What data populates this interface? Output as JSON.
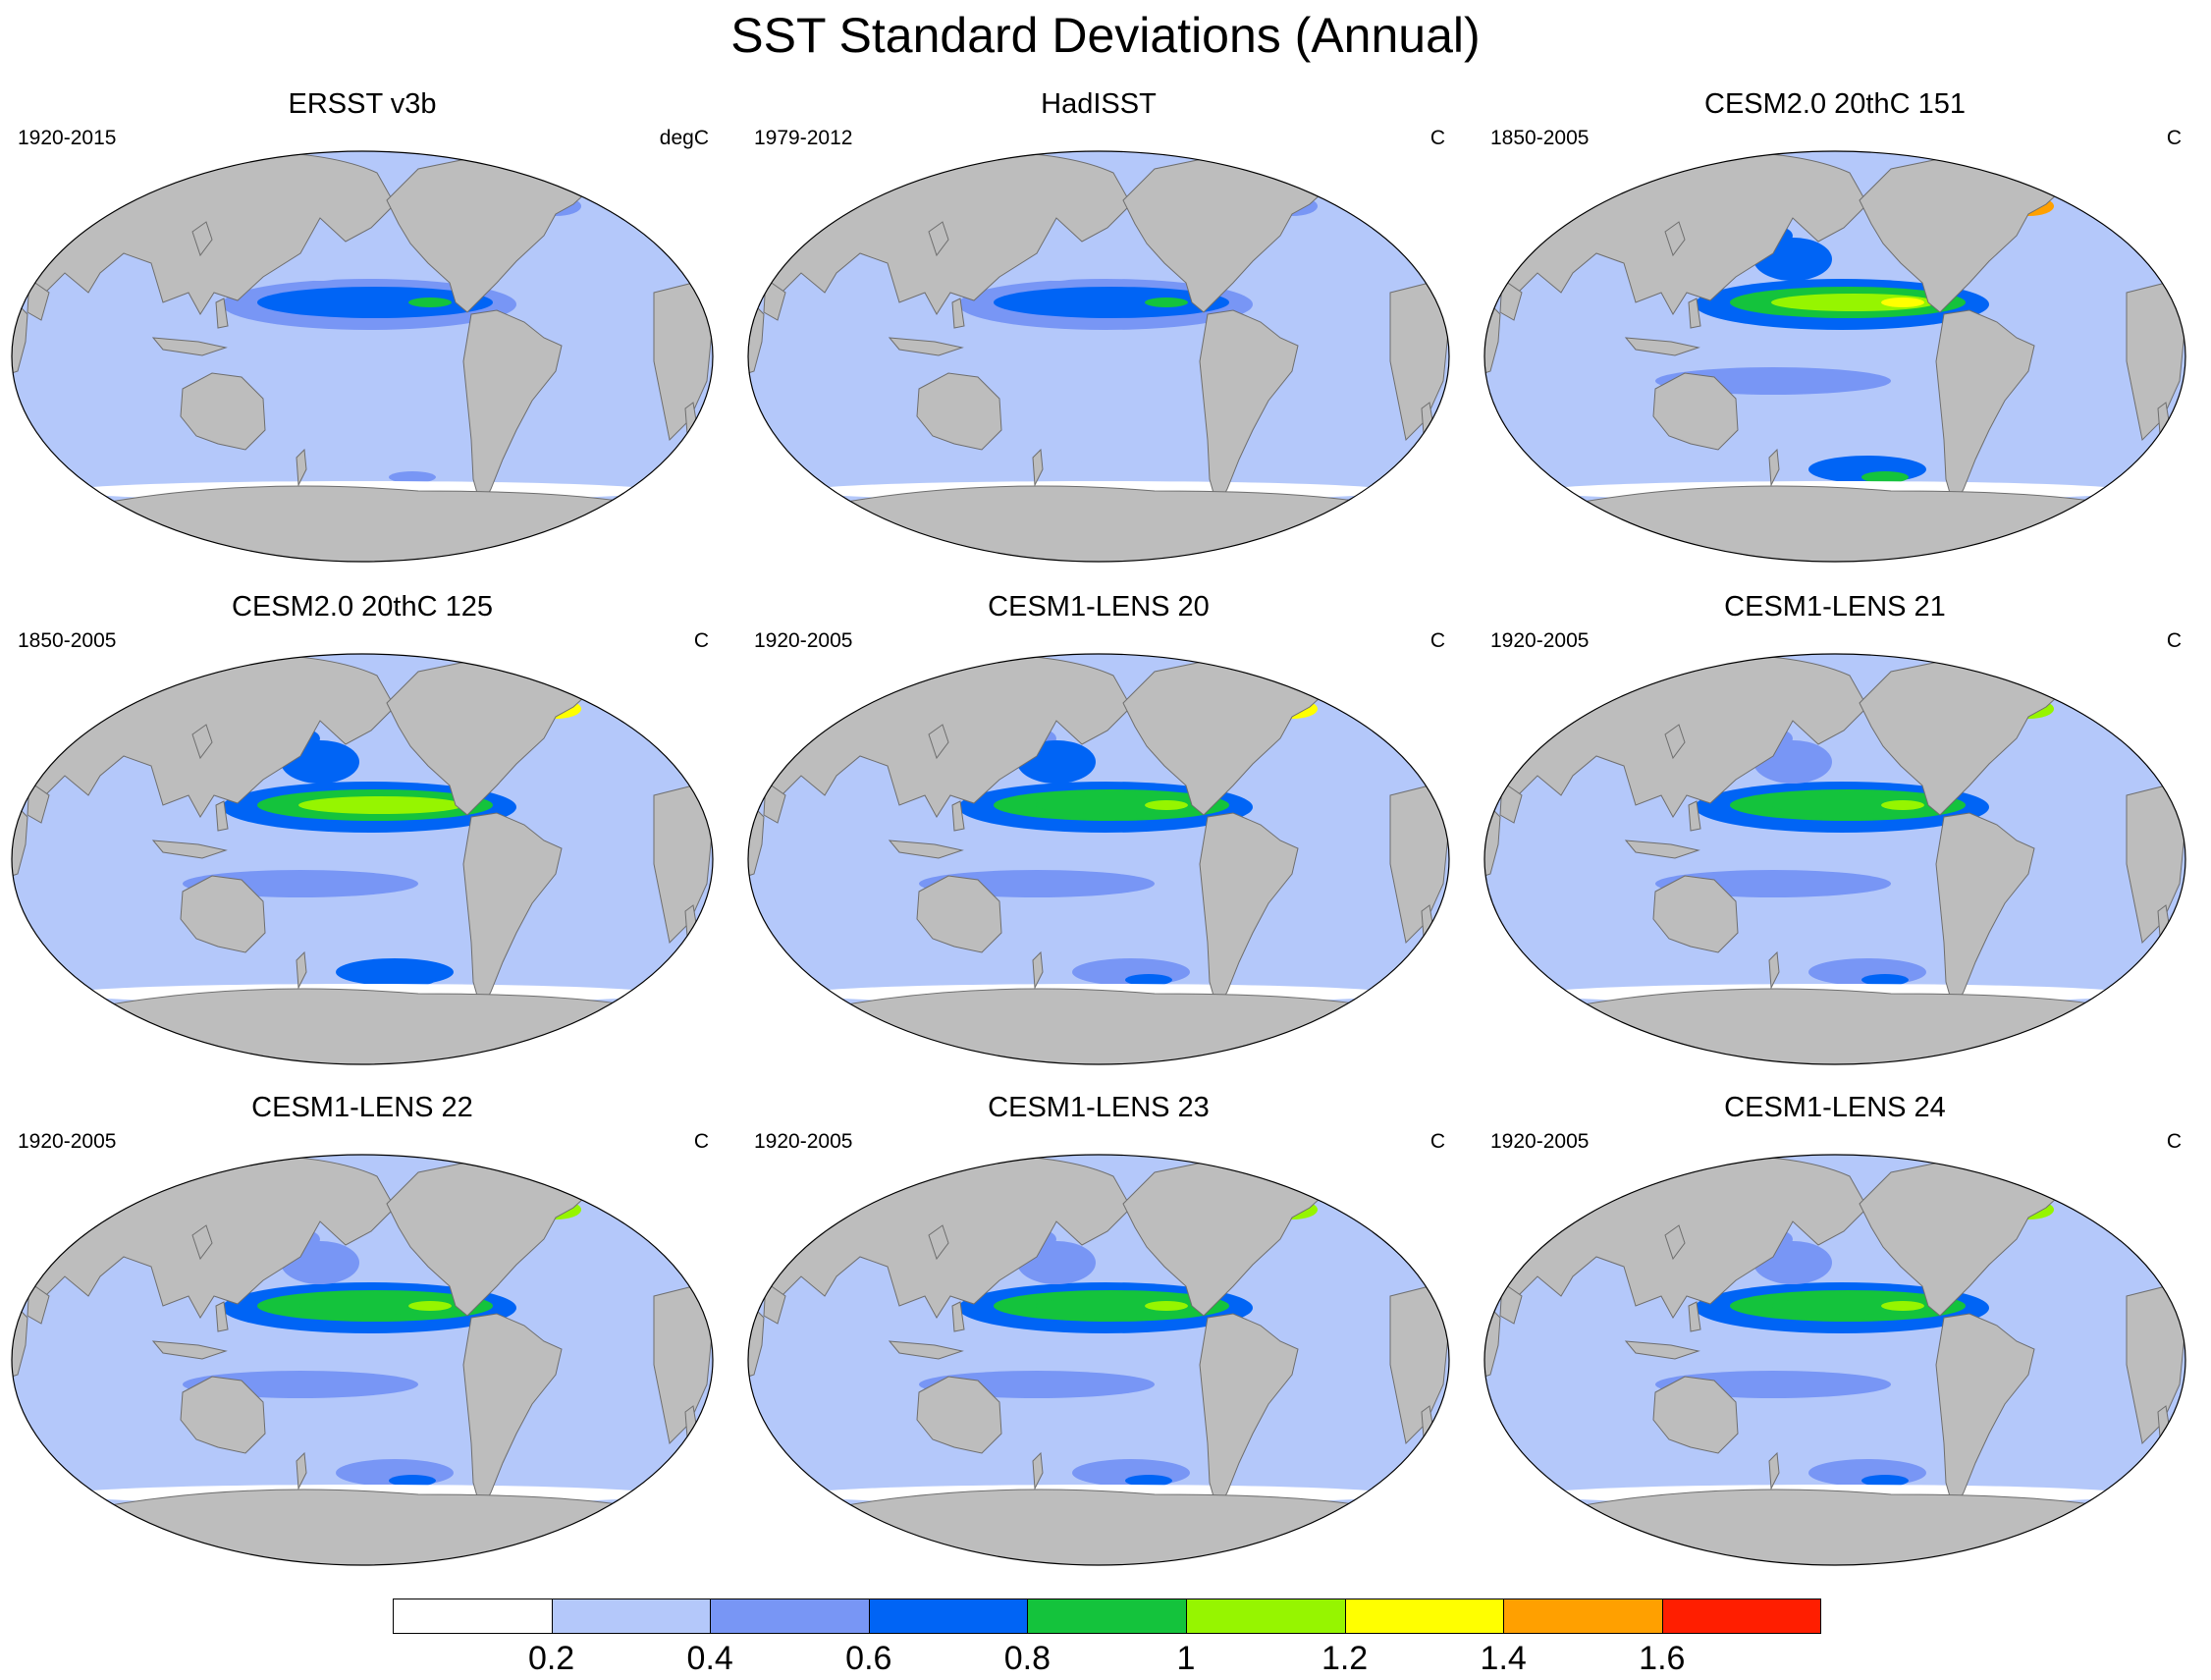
{
  "title": "SST Standard Deviations (Annual)",
  "colors": {
    "land": "#bdbdbd",
    "coast": "#6e6e6e",
    "levels": [
      "#ffffff",
      "#b4c8fa",
      "#7896f5",
      "#0064f5",
      "#14c33c",
      "#96f500",
      "#ffff00",
      "#ffa000",
      "#ff1e00"
    ]
  },
  "colorbar": {
    "labels": [
      "0.2",
      "0.4",
      "0.6",
      "0.8",
      "1",
      "1.2",
      "1.4",
      "1.6"
    ]
  },
  "panels": [
    {
      "title": "ERSST v3b",
      "period": "1920-2015",
      "units": "degC",
      "intensity": 0.62,
      "hi_lat": 0.3
    },
    {
      "title": "HadISST",
      "period": "1979-2012",
      "units": "C",
      "intensity": 0.6,
      "hi_lat": 0.25
    },
    {
      "title": "CESM2.0 20thC 151",
      "period": "1850-2005",
      "units": "C",
      "intensity": 1.0,
      "hi_lat": 1.0
    },
    {
      "title": "CESM2.0 20thC 125",
      "period": "1850-2005",
      "units": "C",
      "intensity": 0.95,
      "hi_lat": 0.9
    },
    {
      "title": "CESM1-LENS 20",
      "period": "1920-2005",
      "units": "C",
      "intensity": 0.85,
      "hi_lat": 0.95
    },
    {
      "title": "CESM1-LENS 21",
      "period": "1920-2005",
      "units": "C",
      "intensity": 0.82,
      "hi_lat": 0.85
    },
    {
      "title": "CESM1-LENS 22",
      "period": "1920-2005",
      "units": "C",
      "intensity": 0.83,
      "hi_lat": 0.9
    },
    {
      "title": "CESM1-LENS 23",
      "period": "1920-2005",
      "units": "C",
      "intensity": 0.8,
      "hi_lat": 0.85
    },
    {
      "title": "CESM1-LENS 24",
      "period": "1920-2005",
      "units": "C",
      "intensity": 0.8,
      "hi_lat": 0.85
    }
  ]
}
